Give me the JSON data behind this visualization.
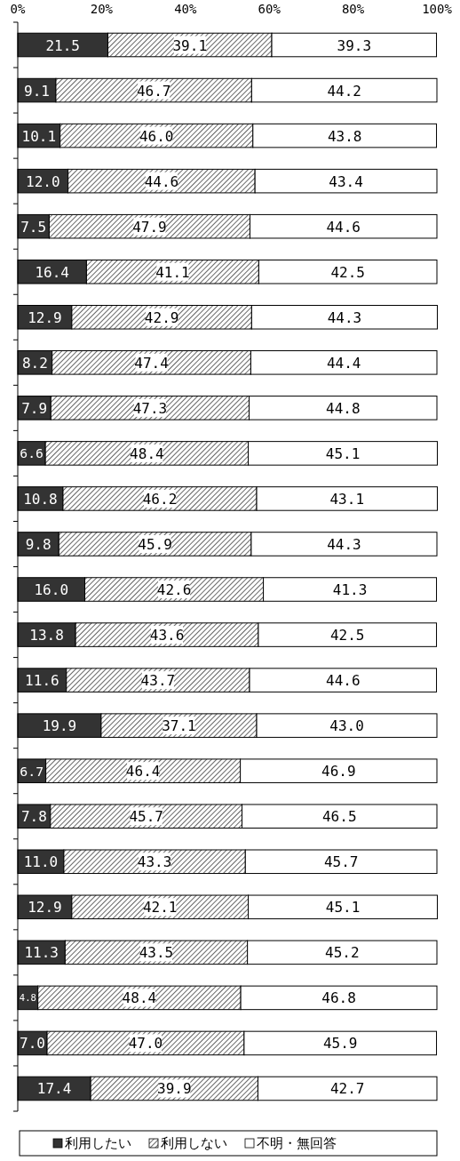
{
  "chart_data": {
    "type": "bar",
    "orientation": "horizontal",
    "stacked": true,
    "legend": "bottom",
    "categories": [
      null,
      null,
      null,
      null,
      null,
      null,
      null,
      null,
      null,
      null,
      null,
      null,
      null,
      null,
      null,
      null,
      null,
      null,
      null,
      null,
      null,
      null,
      null,
      null
    ],
    "xlim": [
      0,
      100
    ],
    "xticks": [
      {
        "value": 0,
        "label": "0%"
      },
      {
        "value": 20,
        "label": "20%"
      },
      {
        "value": 40,
        "label": "40%"
      },
      {
        "value": 60,
        "label": "60%"
      },
      {
        "value": 80,
        "label": "80%"
      },
      {
        "value": 100,
        "label": "100%"
      }
    ],
    "series": [
      {
        "name": "利用したい",
        "color": "#333333",
        "values": [
          21.5,
          9.1,
          10.1,
          12.0,
          7.5,
          16.4,
          12.9,
          8.2,
          7.9,
          6.6,
          10.8,
          9.8,
          16.0,
          13.8,
          11.6,
          19.9,
          6.7,
          7.8,
          11.0,
          12.9,
          11.3,
          4.8,
          7.0,
          17.4
        ],
        "value_labels": [
          "21.5",
          "9.1",
          "10.1",
          "12.0",
          "7.5",
          "16.4",
          "12.9",
          "8.2",
          "7.9",
          "6.6",
          "10.8",
          "9.8",
          "16.0",
          "13.8",
          "11.6",
          "19.9",
          "6.7",
          "7.8",
          "11.0",
          "12.9",
          "11.3",
          "4.8",
          "7.0",
          "17.4"
        ]
      },
      {
        "name": "利用しない",
        "color": "#000000",
        "values": [
          39.1,
          46.7,
          46.0,
          44.6,
          47.9,
          41.1,
          42.9,
          47.4,
          47.3,
          48.4,
          46.2,
          45.9,
          42.6,
          43.6,
          43.7,
          37.1,
          46.4,
          45.7,
          43.3,
          42.1,
          43.5,
          48.4,
          47.0,
          39.9
        ],
        "value_labels": [
          "39.1",
          "46.7",
          "46.0",
          "44.6",
          "47.9",
          "41.1",
          "42.9",
          "47.4",
          "47.3",
          "48.4",
          "46.2",
          "45.9",
          "42.6",
          "43.6",
          "43.7",
          "37.1",
          "46.4",
          "45.7",
          "43.3",
          "42.1",
          "43.5",
          "48.4",
          "47.0",
          "39.9"
        ]
      },
      {
        "name": "不明・無回答",
        "color": "#ffffff",
        "values": [
          39.3,
          44.2,
          43.8,
          43.4,
          44.6,
          42.5,
          44.3,
          44.4,
          44.8,
          45.1,
          43.1,
          44.3,
          41.3,
          42.5,
          44.6,
          43.0,
          46.9,
          46.5,
          45.7,
          45.1,
          45.2,
          46.8,
          45.9,
          42.7
        ],
        "value_labels": [
          "39.3",
          "44.2",
          "43.8",
          "43.4",
          "44.6",
          "42.5",
          "44.3",
          "44.4",
          "44.8",
          "45.1",
          "43.1",
          "44.3",
          "41.3",
          "42.5",
          "44.6",
          "43.0",
          "46.9",
          "46.5",
          "45.7",
          "45.1",
          "45.2",
          "46.8",
          "45.9",
          "42.7"
        ]
      }
    ]
  }
}
